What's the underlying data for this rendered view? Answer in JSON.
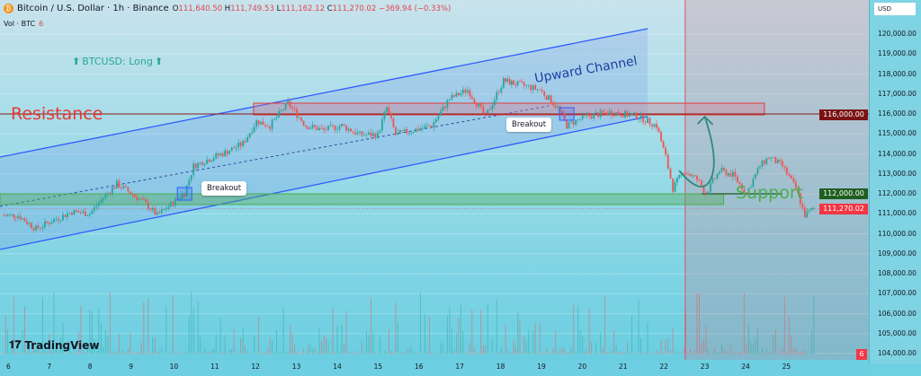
{
  "header": {
    "symbol_icon": "bitcoin-icon",
    "title": "Bitcoin / U.S. Dollar · 1h · Binance",
    "open_label": "O",
    "open": "111,640.50",
    "high_label": "H",
    "high": "111,749.53",
    "low_label": "L",
    "low": "111,162.12",
    "close_label": "C",
    "close": "111,270.02",
    "change": "−369.94 (−0.33%)",
    "vol_label": "Vol · BTC",
    "vol_value": "6"
  },
  "axis": {
    "currency": "USD",
    "resistance_tag": "116,000.00",
    "support_tag": "112,000.00",
    "last_price_tag": "111,270.02",
    "vol_tag": "6"
  },
  "annotations": {
    "long_label": "BTCUSD: Long",
    "resistance": "Resistance",
    "support": "Support",
    "channel": "Upward Channel",
    "breakout1": "Breakout",
    "breakout2": "Breakout"
  },
  "branding": {
    "logo": "TradingView"
  },
  "colors": {
    "bull": "#26a69a",
    "bear": "#ef5350",
    "resistance": "#8b1a1a",
    "support": "#1e5a1e",
    "channel": "#2f5bff",
    "last_price": "#f23645"
  },
  "chart_data": {
    "type": "candlestick",
    "x_tick_labels": [
      "6",
      "7",
      "8",
      "9",
      "10",
      "11",
      "12",
      "13",
      "14",
      "15",
      "16",
      "17",
      "18",
      "19",
      "20",
      "21",
      "22",
      "23",
      "24",
      "25"
    ],
    "y_tick_labels": [
      "120,000.00",
      "119,000.00",
      "118,000.00",
      "117,000.00",
      "116,000.00",
      "115,000.00",
      "114,000.00",
      "113,000.00",
      "112,000.00",
      "111,000.00",
      "110,000.00",
      "109,000.00",
      "108,000.00",
      "107,000.00",
      "106,000.00",
      "105,000.00",
      "104,000.00"
    ],
    "ylim": [
      103500,
      120700
    ],
    "xlim": [
      5.78,
      26.95
    ],
    "price_path": [
      [
        5.82,
        110922
      ],
      [
        6.22,
        110922
      ],
      [
        6.66,
        110248
      ],
      [
        7.1,
        110697
      ],
      [
        7.54,
        111102
      ],
      [
        7.98,
        111012
      ],
      [
        8.31,
        111821
      ],
      [
        8.64,
        112495
      ],
      [
        8.97,
        112046
      ],
      [
        9.3,
        111596
      ],
      [
        9.63,
        110922
      ],
      [
        9.96,
        111461
      ],
      [
        10.3,
        112046
      ],
      [
        10.52,
        113394
      ],
      [
        10.85,
        113708
      ],
      [
        11.29,
        114068
      ],
      [
        11.73,
        114517
      ],
      [
        12.06,
        115641
      ],
      [
        12.39,
        115416
      ],
      [
        12.83,
        116540
      ],
      [
        13.27,
        115416
      ],
      [
        13.71,
        115191
      ],
      [
        14.15,
        115416
      ],
      [
        14.59,
        114967
      ],
      [
        15.03,
        114967
      ],
      [
        15.25,
        116315
      ],
      [
        15.47,
        114967
      ],
      [
        15.91,
        115191
      ],
      [
        16.35,
        115416
      ],
      [
        16.79,
        116764
      ],
      [
        17.23,
        117214
      ],
      [
        17.67,
        115866
      ],
      [
        18.11,
        117663
      ],
      [
        18.56,
        117438
      ],
      [
        19.0,
        117214
      ],
      [
        19.44,
        116315
      ],
      [
        19.66,
        115416
      ],
      [
        20.1,
        115866
      ],
      [
        20.76,
        116090
      ],
      [
        21.42,
        115866
      ],
      [
        21.86,
        115416
      ],
      [
        22.08,
        113843
      ],
      [
        22.26,
        112270
      ],
      [
        22.52,
        113169
      ],
      [
        22.85,
        112720
      ],
      [
        23.07,
        112046
      ],
      [
        23.4,
        113169
      ],
      [
        23.73,
        112945
      ],
      [
        24.06,
        112046
      ],
      [
        24.39,
        113394
      ],
      [
        24.61,
        113843
      ],
      [
        24.94,
        113394
      ],
      [
        25.27,
        112270
      ],
      [
        25.49,
        110922
      ],
      [
        25.71,
        111270
      ]
    ],
    "channel_upper": [
      [
        5.78,
        113843
      ],
      [
        21.64,
        120270
      ]
    ],
    "channel_lower": [
      [
        5.78,
        109214
      ],
      [
        21.64,
        115865
      ]
    ],
    "channel_mid": [
      [
        5.78,
        111371
      ],
      [
        19.22,
        116405
      ]
    ],
    "resistance_zone": {
      "from": 11.99,
      "to": 24.5,
      "low": 115956,
      "high": 116540,
      "level": 116000
    },
    "support_zone": {
      "from": 5.78,
      "to": 23.5,
      "low": 111461,
      "high": 112000,
      "level": 112000
    },
    "marker_day": 22.56,
    "breakouts": [
      [
        10.3,
        112000
      ],
      [
        19.66,
        116000
      ]
    ],
    "projection": [
      [
        22.41,
        113169
      ],
      [
        23.04,
        115866
      ]
    ]
  }
}
